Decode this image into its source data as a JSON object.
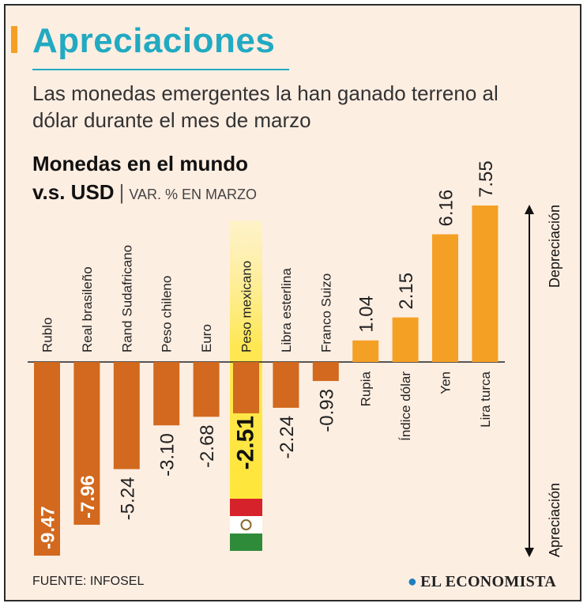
{
  "header": {
    "title": "Apreciaciones",
    "subtitle": "Las monedas emergentes la han ganado terreno al dólar durante el mes de marzo"
  },
  "chart_heading": {
    "line1": "Monedas en el mundo",
    "line2_bold": "v.s. USD",
    "separator": "|",
    "line2_unit": "VAR. % EN MARZO"
  },
  "footer": {
    "source": "FUENTE: INFOSEL",
    "brand": "EL ECONOMISTA"
  },
  "colors": {
    "accent": "#21aac1",
    "negative_bar": "#d2691e",
    "positive_bar": "#f4a024",
    "highlight": "#ffe63a",
    "flag_green": "#2e8b3a",
    "flag_red": "#d6232b"
  },
  "chart_data": {
    "type": "bar",
    "title": "Monedas en el mundo v.s. USD",
    "ylabel": "VAR. % EN MARZO",
    "categories": [
      "Rublo",
      "Real brasileño",
      "Rand Sudafricano",
      "Peso chileno",
      "Euro",
      "Peso mexicano",
      "Libra esterlina",
      "Franco Suizo",
      "Rupia",
      "Índice dólar",
      "Yen",
      "Lira turca"
    ],
    "values": [
      -9.47,
      -7.96,
      -5.24,
      -3.1,
      -2.68,
      -2.51,
      -2.24,
      -0.93,
      1.04,
      2.15,
      6.16,
      7.55
    ],
    "value_labels": [
      "-9.47",
      "-7.96",
      "-5.24",
      "-3.10",
      "-2.68",
      "-2.51",
      "-2.24",
      "-0.93",
      "1.04",
      "2.15",
      "6.16",
      "7.55"
    ],
    "highlight_category": "Peso mexicano",
    "ylim": [
      -9.47,
      7.55
    ],
    "axis_labels": {
      "positive": "Depreciación",
      "negative": "Apreciación"
    }
  }
}
